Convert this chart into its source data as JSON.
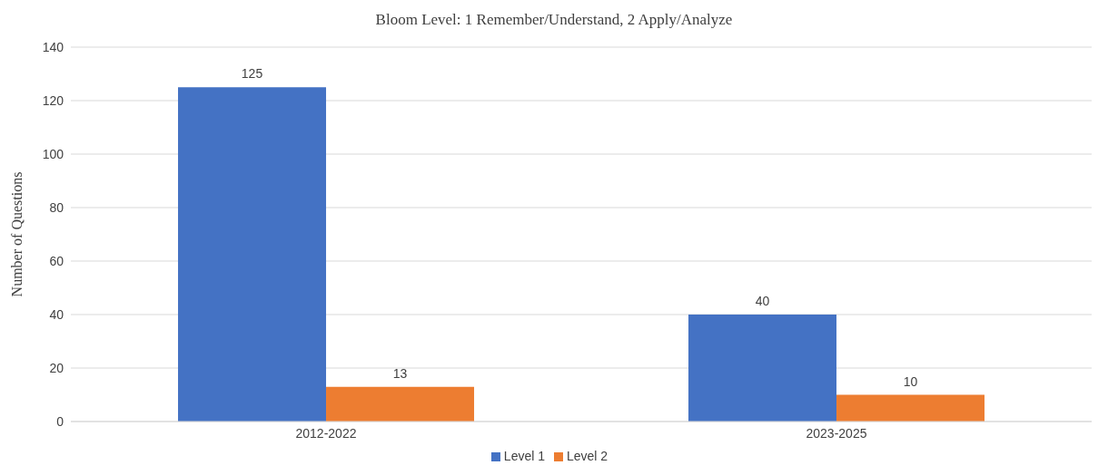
{
  "chart_data": {
    "type": "bar",
    "title": "Bloom Level: 1 Remember/Understand, 2 Apply/Analyze",
    "ylabel": "Number of Questions",
    "categories": [
      "2012-2022",
      "2023-2025"
    ],
    "series": [
      {
        "name": "Level 1",
        "color": "#4472c4",
        "values": [
          125,
          40
        ]
      },
      {
        "name": "Level 2",
        "color": "#ed7d31",
        "values": [
          13,
          10
        ]
      }
    ],
    "ylim": [
      0,
      140
    ],
    "yticks": [
      0,
      20,
      40,
      60,
      80,
      100,
      120,
      140
    ],
    "grid": "y",
    "legend": "bottom",
    "data_labels": true
  }
}
